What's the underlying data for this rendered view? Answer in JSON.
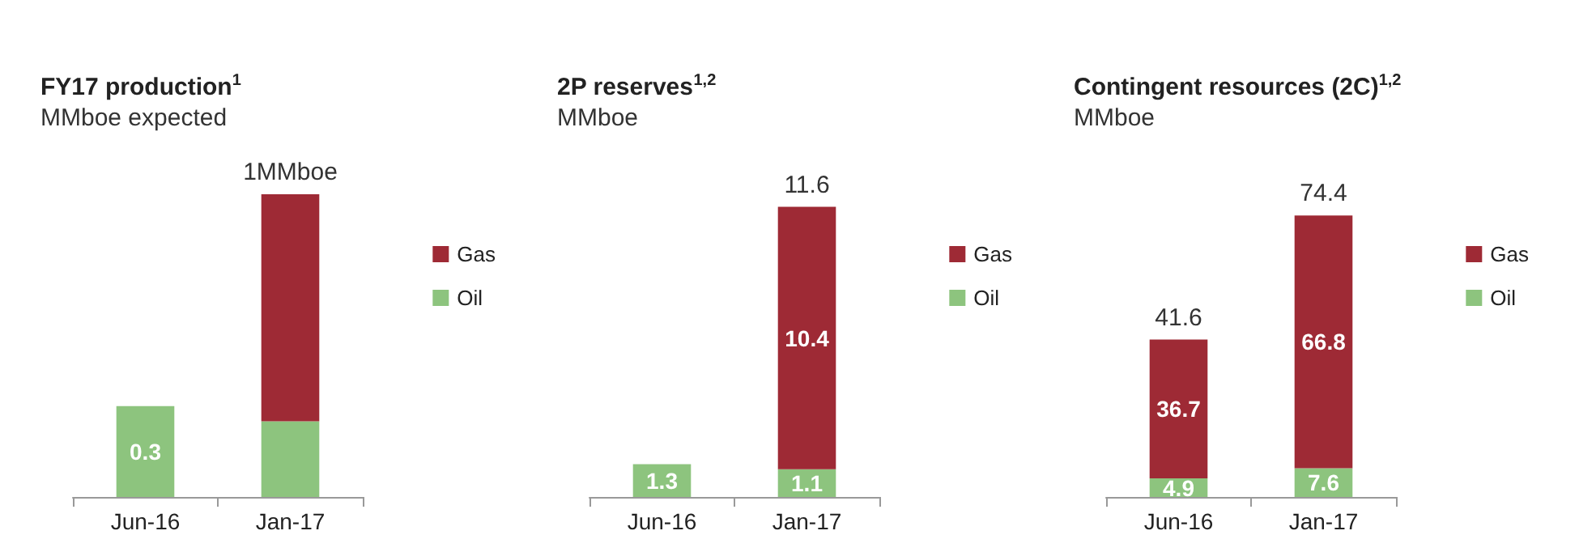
{
  "chart_data": [
    {
      "type": "bar",
      "title": "FY17 production$^{1}$",
      "subtitle": "MMboe expected",
      "categories": [
        "Jun-16",
        "Jan-17"
      ],
      "stacked": true,
      "legend": "right",
      "tick_labels": "x",
      "grid": false,
      "series": [
        {
          "name": "Oil",
          "color": "#8dc47e",
          "values": [
            0.3,
            0.25
          ],
          "value_labels": [
            "0.3",
            null
          ]
        },
        {
          "name": "Gas",
          "color": "#9e2a35",
          "values": [
            null,
            0.75
          ]
        }
      ],
      "totals": [
        null,
        "1MMboe"
      ]
    },
    {
      "type": "bar",
      "title": "2P reserves$^{1,2}$",
      "subtitle": "MMboe",
      "categories": [
        "Jun-16",
        "Jan-17"
      ],
      "stacked": true,
      "legend": "right",
      "tick_labels": "x",
      "grid": false,
      "series": [
        {
          "name": "Oil",
          "color": "#8dc47e",
          "values": [
            1.3,
            1.1
          ],
          "value_labels": [
            "1.3",
            "1.1"
          ]
        },
        {
          "name": "Gas",
          "color": "#9e2a35",
          "values": [
            null,
            10.4
          ],
          "value_labels": [
            null,
            "10.4"
          ]
        }
      ],
      "totals": [
        null,
        "11.6"
      ]
    },
    {
      "type": "bar",
      "title": "Contingent resources (2C)$^{1,2}$",
      "subtitle": "MMboe",
      "categories": [
        "Jun-16",
        "Jan-17"
      ],
      "stacked": true,
      "legend": "right",
      "tick_labels": "x",
      "grid": false,
      "series": [
        {
          "name": "Oil",
          "color": "#8dc47e",
          "values": [
            4.9,
            7.6
          ],
          "value_labels": [
            "4.9",
            "7.6"
          ]
        },
        {
          "name": "Gas",
          "color": "#9e2a35",
          "values": [
            36.7,
            66.8
          ],
          "value_labels": [
            "36.7",
            "66.8"
          ]
        }
      ],
      "totals": [
        "41.6",
        "74.4"
      ]
    }
  ]
}
